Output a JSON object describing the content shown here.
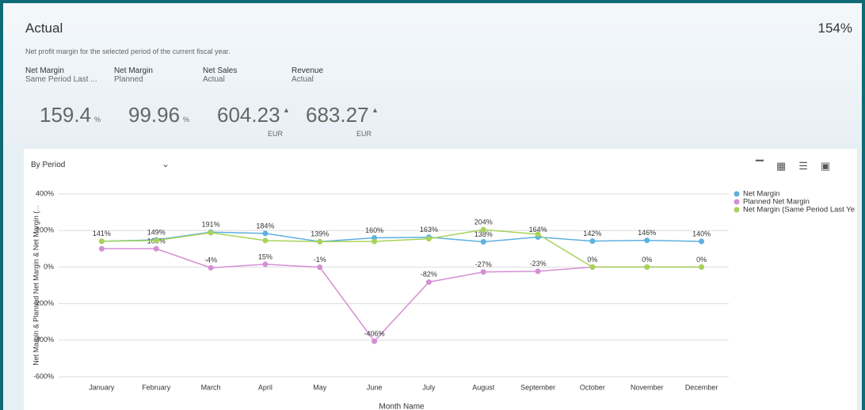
{
  "header": {
    "title": "Actual",
    "value": "154%",
    "subtitle": "Net profit margin for the selected period of the current fiscal year."
  },
  "kpis": [
    {
      "label": "Net Margin",
      "sublabel": "Same Period Last ...",
      "value": "159.4",
      "unit": "%"
    },
    {
      "label": "Net Margin",
      "sublabel": "Planned",
      "value": "99.96",
      "unit": "%"
    },
    {
      "label": "Net Sales",
      "sublabel": "Actual",
      "value": "604.23",
      "unit": "EUR"
    },
    {
      "label": "Revenue",
      "sublabel": "Actual",
      "value": "683.27",
      "unit": "EUR"
    }
  ],
  "dropdown": "By Period",
  "chart_data": {
    "type": "line",
    "categories": [
      "January",
      "February",
      "March",
      "April",
      "May",
      "June",
      "July",
      "August",
      "September",
      "October",
      "November",
      "December"
    ],
    "series": [
      {
        "name": "Net Margin",
        "color": "#5cb1e0",
        "values": [
          141,
          149,
          191,
          184,
          139,
          160,
          163,
          138,
          164,
          142,
          146,
          140
        ],
        "value_labels": [
          "141%",
          "149%",
          "191%",
          "184%",
          "139%",
          "160%",
          "163%",
          "138%",
          "164%",
          "142%",
          "146%",
          "140%"
        ]
      },
      {
        "name": "Planned Net Margin",
        "color": "#d490d4",
        "values": [
          100,
          100,
          -4,
          15,
          -1,
          -406,
          -82,
          -27,
          -23,
          0,
          0,
          0
        ],
        "value_labels": [
          null,
          "100%",
          "-4%",
          "15%",
          "-1%",
          "-406%",
          "-82%",
          "-27%",
          "-23%",
          "0%",
          "0%",
          "0%"
        ]
      },
      {
        "name": "Net Margin (Same Period Last Ye",
        "color": "#a8d35a",
        "values": [
          141,
          145,
          188,
          145,
          139,
          140,
          155,
          204,
          180,
          0,
          0,
          0
        ],
        "value_labels": [
          null,
          null,
          null,
          null,
          null,
          null,
          null,
          "204%",
          null,
          null,
          null,
          null
        ]
      }
    ],
    "ylim": [
      -600,
      400
    ],
    "yticks": [
      {
        "value": 400,
        "label": "400%"
      },
      {
        "value": 200,
        "label": "200%"
      },
      {
        "value": 0,
        "label": "0%"
      },
      {
        "value": -200,
        "label": "-200%"
      },
      {
        "value": -400,
        "label": "-400%"
      },
      {
        "value": -600,
        "label": "-600%"
      }
    ],
    "ylabel": "Net Margin & Planned Net Margin & Net Margin (...",
    "xlabel": "Month Name",
    "grid": true
  }
}
